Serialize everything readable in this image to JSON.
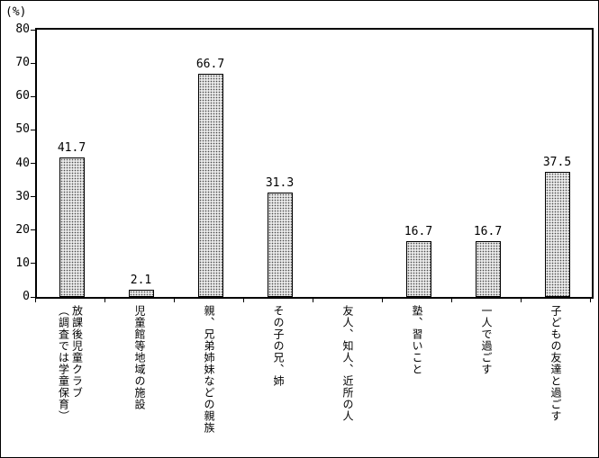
{
  "chart_data": {
    "type": "bar",
    "title": "",
    "unit_label": "(%)",
    "xlabel": "",
    "ylabel": "(%)",
    "ylim": [
      0,
      80
    ],
    "yticks": [
      0,
      10,
      20,
      30,
      40,
      50,
      60,
      70,
      80
    ],
    "grid": false,
    "legend": "none",
    "categories": [
      "放課後児童クラブ\n（調査では学童保育）",
      "児童館等地域の施設",
      "親、兄弟姉妹などの親族",
      "その子の兄、姉",
      "友人、知人、近所の人",
      "塾、習いこと",
      "一人で過ごす",
      "子どもの友達と過ごす"
    ],
    "values": [
      41.7,
      2.1,
      66.7,
      31.3,
      0,
      16.7,
      16.7,
      37.5
    ],
    "value_labels": [
      "41.7",
      "2.1",
      "66.7",
      "31.3",
      "",
      "16.7",
      "16.7",
      "37.5"
    ],
    "bar_fill_color": "#e9e9e9",
    "bar_dot_color": "#4a4a4a",
    "bar_border_color": "#000000"
  }
}
